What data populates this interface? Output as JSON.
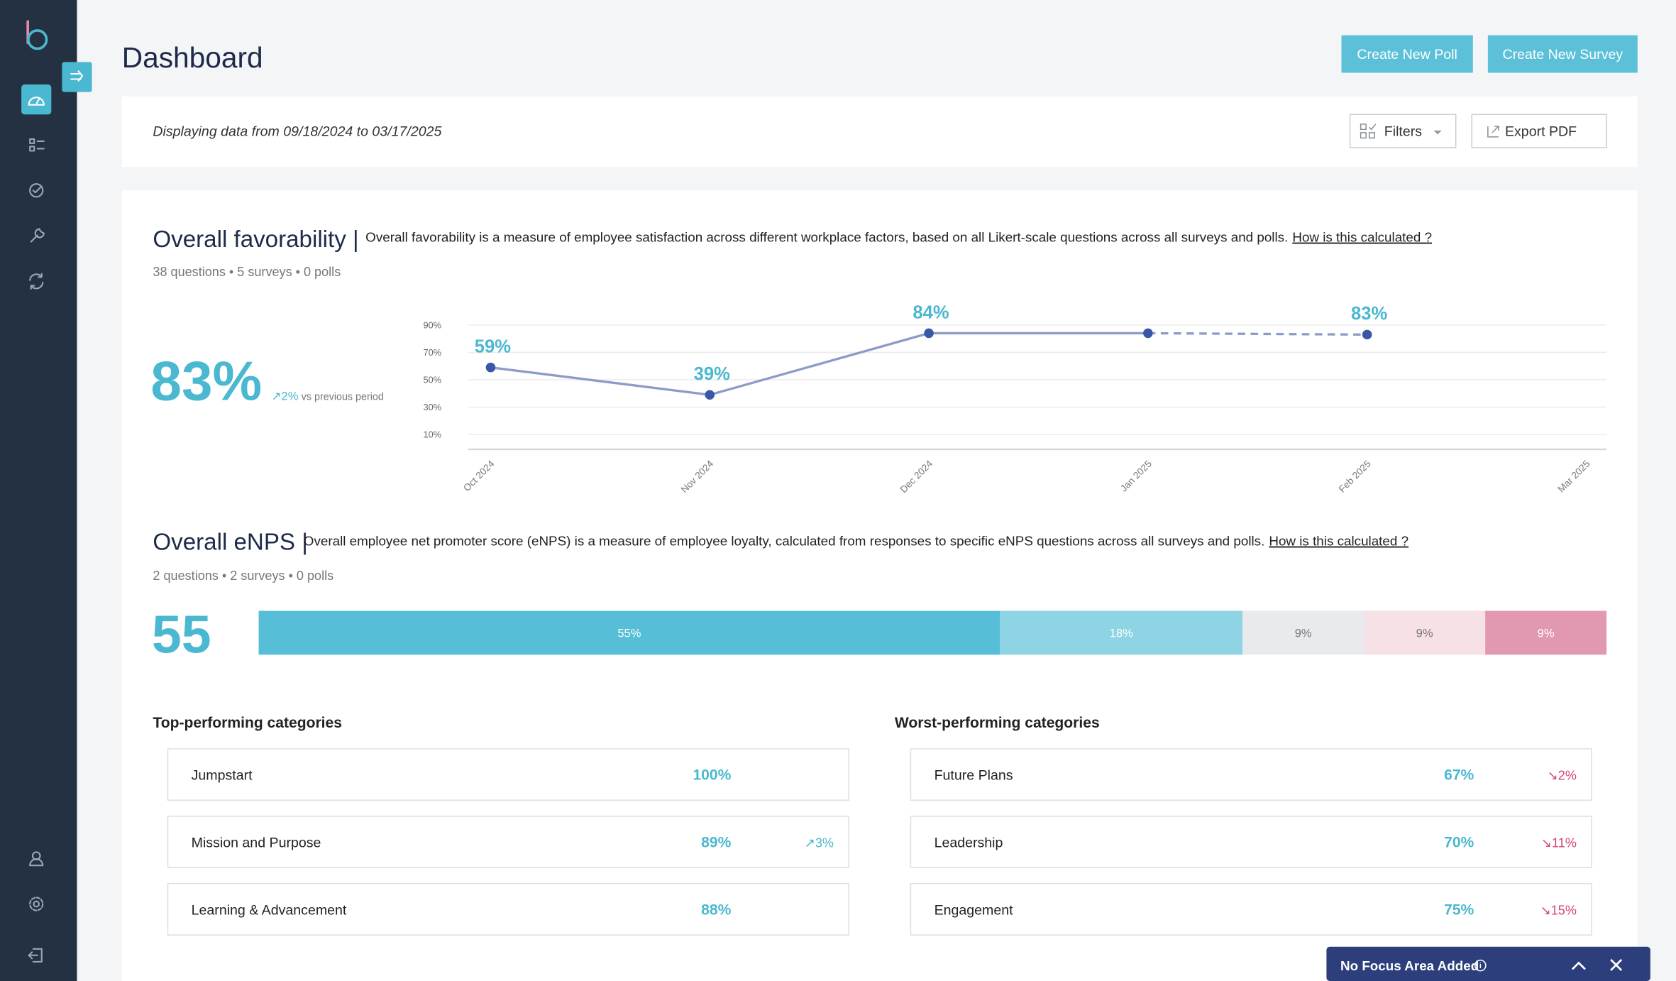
{
  "header": {
    "title": "Dashboard",
    "buttons": [
      "Create New Poll",
      "Create New Survey"
    ]
  },
  "date_range": "Displaying data from 09/18/2024 to 03/17/2025",
  "toolbar": {
    "filters": "Filters",
    "export": "Export PDF"
  },
  "favorability": {
    "title": "Overall favorability |",
    "description": "Overall favorability is a measure of employee satisfaction across different workplace factors, based on all Likert-scale questions across all surveys and polls.",
    "link": "How is this calculated ?",
    "meta": "38 questions • 5 surveys • 0 polls",
    "score": "83%",
    "change": "↗2%",
    "change_note": "vs previous period",
    "chart": {
      "type": "line",
      "categories": [
        "Oct 2024",
        "Nov 2024",
        "Dec 2024",
        "Jan 2025",
        "Feb 2025",
        "Mar 2025"
      ],
      "values": [
        59,
        39,
        84,
        84,
        83,
        null
      ],
      "value_labels": [
        "59%",
        "39%",
        "84%",
        null,
        "83%",
        null
      ],
      "ylim": [
        0,
        100
      ],
      "yticks": [
        {
          "value": 10,
          "label": "10%"
        },
        {
          "value": 30,
          "label": "30%"
        },
        {
          "value": 50,
          "label": "50%"
        },
        {
          "value": 70,
          "label": "70%"
        },
        {
          "value": 90,
          "label": "90%"
        }
      ],
      "color": "#8a9cc7",
      "marker_color": "#3b56a6",
      "label_color": "#4ab8d0",
      "dash_from": 3
    }
  },
  "enps": {
    "title": "Overall eNPS |",
    "description": "Overall employee net promoter score (eNPS) is a measure of employee loyalty, calculated from responses to specific eNPS questions across all surveys and polls.",
    "link": "How is this calculated ?",
    "meta": "2 questions • 2 surveys • 0 polls",
    "score": "55",
    "chart": {
      "type": "stacked-bar",
      "values": [
        55,
        18,
        9,
        9,
        9
      ],
      "value_labels": [
        "55%",
        "18%",
        "9%",
        "9%",
        "9%"
      ],
      "colors": [
        "#56bed6",
        "#8fd4e4",
        "#e9eaed",
        "#f5e1e6",
        "#e298b0"
      ],
      "label_colors": [
        "#ffffff",
        "#ffffff",
        "#777777",
        "#777777",
        "#ffffff"
      ]
    }
  },
  "top": {
    "title": "Top-performing categories",
    "rows": [
      {
        "name": "Jumpstart",
        "score": "100%"
      },
      {
        "name": "Mission and Purpose",
        "score": "89%",
        "change": "↗3%"
      },
      {
        "name": "Learning & Advancement",
        "score": "88%"
      }
    ]
  },
  "worst": {
    "title": "Worst-performing categories",
    "rows": [
      {
        "name": "Future Plans",
        "score": "67%",
        "change": "↘2%"
      },
      {
        "name": "Leadership",
        "score": "70%",
        "change": "↘11%"
      },
      {
        "name": "Engagement",
        "score": "75%",
        "change": "↘15%"
      }
    ]
  },
  "focus_banner": "No Focus Area Added"
}
